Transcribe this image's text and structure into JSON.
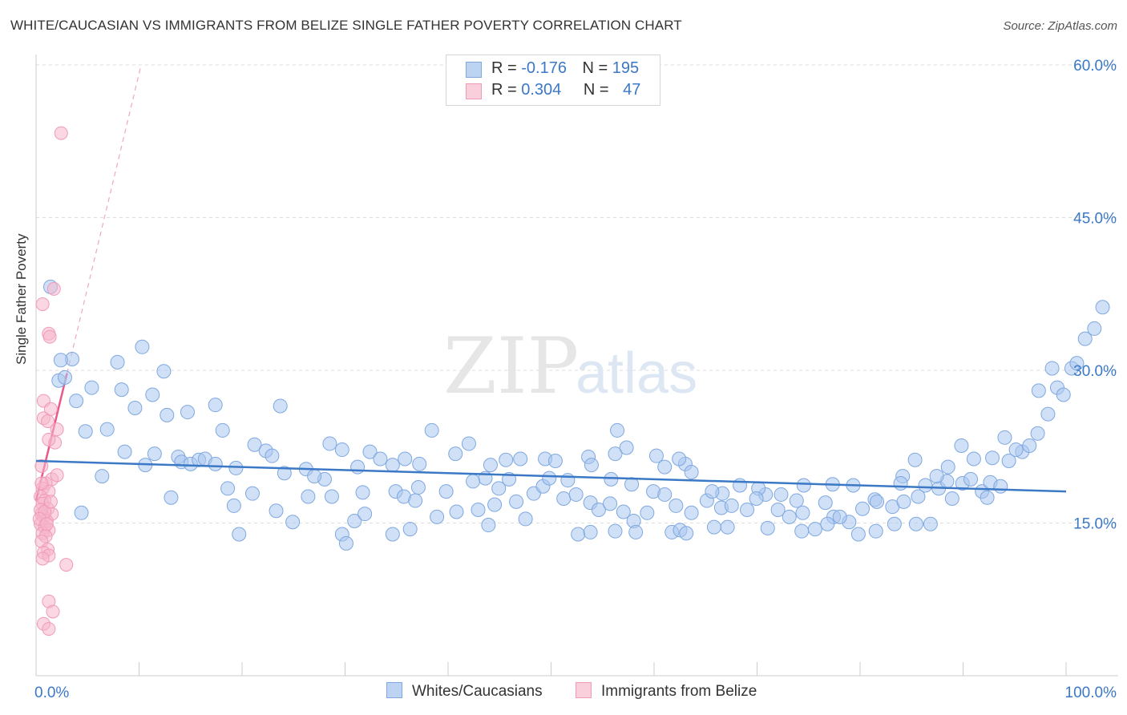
{
  "header": {
    "title": "WHITE/CAUCASIAN VS IMMIGRANTS FROM BELIZE SINGLE FATHER POVERTY CORRELATION CHART",
    "source": "Source: ZipAtlas.com"
  },
  "watermark": {
    "part1": "ZIP",
    "part2": "atlas"
  },
  "legend": {
    "rows": [
      {
        "r_label": "R = ",
        "r_value": "-0.176",
        "n_label": "N = ",
        "n_value": "195",
        "color": "#7fa8e0"
      },
      {
        "r_label": "R = ",
        "r_value": "0.304",
        "n_label": "N = ",
        "n_value": "47",
        "color": "#f09ab8"
      }
    ]
  },
  "bottom_legend": {
    "series1": "Whites/Caucasians",
    "series2": "Immigrants from Belize"
  },
  "chart_data": {
    "type": "scatter",
    "xlabel": "",
    "ylabel": "Single Father Poverty",
    "xlim": [
      0,
      100
    ],
    "ylim": [
      0,
      63
    ],
    "x_tick_labels": {
      "min": "0.0%",
      "max": "100.0%"
    },
    "y_ticks": [
      {
        "value": 15,
        "label": "15.0%"
      },
      {
        "value": 30,
        "label": "30.0%"
      },
      {
        "value": 45,
        "label": "45.0%"
      },
      {
        "value": 60,
        "label": "60.0%"
      }
    ],
    "gridlines": true,
    "colors": {
      "blue": "#3b78c6",
      "blue_fill": "#a9c6ee",
      "pink": "#e8588c",
      "pink_fill": "#f5b6cb"
    },
    "series": [
      {
        "name": "Whites/Caucasians",
        "trend": {
          "x": [
            0,
            100
          ],
          "y": [
            21.1,
            18.1
          ]
        },
        "points": [
          [
            1.4,
            38.2
          ],
          [
            3.5,
            31.1
          ],
          [
            2.4,
            31.0
          ],
          [
            2.2,
            29.0
          ],
          [
            2.8,
            29.3
          ],
          [
            3.9,
            27.0
          ],
          [
            5.4,
            28.3
          ],
          [
            7.9,
            30.8
          ],
          [
            10.3,
            32.3
          ],
          [
            11.3,
            27.6
          ],
          [
            8.3,
            28.1
          ],
          [
            12.4,
            29.9
          ],
          [
            4.8,
            24.0
          ],
          [
            6.9,
            24.2
          ],
          [
            9.6,
            26.3
          ],
          [
            12.7,
            25.6
          ],
          [
            14.7,
            25.9
          ],
          [
            17.4,
            26.6
          ],
          [
            18.1,
            24.1
          ],
          [
            23.7,
            26.5
          ],
          [
            8.6,
            22.0
          ],
          [
            11.5,
            21.8
          ],
          [
            13.8,
            21.5
          ],
          [
            14.1,
            21.0
          ],
          [
            15.0,
            20.8
          ],
          [
            10.6,
            20.7
          ],
          [
            15.8,
            21.2
          ],
          [
            16.4,
            21.3
          ],
          [
            17.4,
            20.8
          ],
          [
            19.4,
            20.4
          ],
          [
            21.2,
            22.7
          ],
          [
            22.3,
            22.1
          ],
          [
            22.9,
            21.6
          ],
          [
            24.1,
            19.9
          ],
          [
            26.2,
            20.3
          ],
          [
            28.5,
            22.8
          ],
          [
            29.7,
            22.2
          ],
          [
            28.0,
            19.3
          ],
          [
            31.2,
            20.5
          ],
          [
            32.4,
            22.0
          ],
          [
            33.4,
            21.3
          ],
          [
            34.6,
            20.7
          ],
          [
            35.8,
            21.3
          ],
          [
            37.2,
            20.8
          ],
          [
            38.4,
            24.1
          ],
          [
            40.7,
            21.8
          ],
          [
            42.0,
            22.8
          ],
          [
            44.1,
            20.7
          ],
          [
            45.6,
            21.2
          ],
          [
            47.0,
            21.3
          ],
          [
            49.4,
            21.3
          ],
          [
            50.4,
            21.1
          ],
          [
            53.6,
            21.5
          ],
          [
            56.2,
            21.8
          ],
          [
            57.3,
            22.4
          ],
          [
            60.2,
            21.6
          ],
          [
            63.0,
            20.8
          ],
          [
            61.0,
            20.5
          ],
          [
            62.4,
            21.3
          ],
          [
            56.4,
            24.1
          ],
          [
            4.4,
            16.0
          ],
          [
            6.4,
            19.6
          ],
          [
            13.1,
            17.5
          ],
          [
            18.6,
            18.4
          ],
          [
            19.2,
            16.7
          ],
          [
            21.0,
            17.9
          ],
          [
            23.3,
            16.2
          ],
          [
            24.9,
            15.1
          ],
          [
            26.4,
            17.6
          ],
          [
            28.7,
            17.6
          ],
          [
            30.9,
            15.2
          ],
          [
            31.9,
            15.9
          ],
          [
            34.9,
            18.1
          ],
          [
            35.7,
            17.6
          ],
          [
            36.8,
            17.2
          ],
          [
            40.8,
            16.1
          ],
          [
            42.9,
            16.3
          ],
          [
            43.6,
            19.4
          ],
          [
            44.9,
            18.4
          ],
          [
            46.6,
            17.1
          ],
          [
            47.5,
            15.4
          ],
          [
            48.3,
            17.9
          ],
          [
            49.2,
            18.6
          ],
          [
            51.2,
            17.4
          ],
          [
            52.4,
            17.8
          ],
          [
            53.8,
            17.0
          ],
          [
            54.6,
            16.3
          ],
          [
            55.7,
            16.9
          ],
          [
            57.0,
            16.1
          ],
          [
            58.0,
            15.2
          ],
          [
            59.3,
            16.0
          ],
          [
            59.9,
            18.1
          ],
          [
            61.0,
            17.8
          ],
          [
            62.1,
            16.7
          ],
          [
            63.6,
            16.0
          ],
          [
            65.1,
            17.2
          ],
          [
            66.5,
            16.5
          ],
          [
            67.1,
            14.6
          ],
          [
            69.0,
            16.3
          ],
          [
            70.8,
            17.8
          ],
          [
            72.0,
            16.3
          ],
          [
            73.1,
            15.6
          ],
          [
            74.4,
            16.0
          ],
          [
            76.6,
            17.0
          ],
          [
            77.4,
            15.6
          ],
          [
            78.9,
            15.1
          ],
          [
            80.2,
            16.4
          ],
          [
            81.4,
            17.3
          ],
          [
            83.1,
            16.6
          ],
          [
            84.2,
            17.1
          ],
          [
            19.7,
            13.9
          ],
          [
            29.7,
            13.9
          ],
          [
            30.1,
            13.0
          ],
          [
            34.6,
            13.9
          ],
          [
            52.6,
            13.9
          ],
          [
            53.8,
            14.1
          ],
          [
            56.2,
            14.2
          ],
          [
            58.2,
            14.1
          ],
          [
            61.7,
            14.1
          ],
          [
            62.5,
            14.3
          ],
          [
            63.1,
            14.0
          ],
          [
            65.8,
            14.6
          ],
          [
            71.0,
            14.5
          ],
          [
            74.3,
            14.2
          ],
          [
            75.6,
            14.4
          ],
          [
            76.8,
            14.9
          ],
          [
            78.0,
            15.6
          ],
          [
            79.8,
            13.9
          ],
          [
            81.5,
            14.2
          ],
          [
            83.3,
            14.9
          ],
          [
            85.4,
            14.9
          ],
          [
            86.3,
            18.7
          ],
          [
            87.6,
            18.4
          ],
          [
            88.4,
            19.1
          ],
          [
            89.9,
            18.9
          ],
          [
            90.7,
            19.3
          ],
          [
            91.8,
            18.1
          ],
          [
            92.6,
            19.0
          ],
          [
            93.6,
            18.6
          ],
          [
            87.4,
            19.6
          ],
          [
            84.1,
            19.6
          ],
          [
            85.6,
            17.6
          ],
          [
            88.9,
            17.4
          ],
          [
            86.8,
            14.9
          ],
          [
            92.8,
            21.4
          ],
          [
            94.4,
            21.1
          ],
          [
            95.7,
            22.0
          ],
          [
            96.4,
            22.6
          ],
          [
            97.2,
            23.8
          ],
          [
            98.2,
            25.7
          ],
          [
            94.0,
            23.4
          ],
          [
            95.1,
            22.2
          ],
          [
            97.3,
            28.0
          ],
          [
            98.6,
            30.2
          ],
          [
            99.1,
            28.3
          ],
          [
            99.7,
            27.6
          ],
          [
            100.5,
            30.2
          ],
          [
            101.0,
            30.7
          ],
          [
            101.8,
            33.1
          ],
          [
            102.7,
            34.1
          ],
          [
            103.5,
            36.2
          ],
          [
            91.0,
            21.3
          ],
          [
            89.8,
            22.6
          ],
          [
            92.3,
            17.5
          ],
          [
            88.5,
            20.5
          ],
          [
            66.6,
            17.9
          ],
          [
            68.3,
            18.7
          ],
          [
            70.1,
            18.4
          ],
          [
            72.3,
            17.8
          ],
          [
            74.5,
            18.7
          ],
          [
            77.3,
            18.8
          ],
          [
            79.3,
            18.7
          ],
          [
            81.6,
            17.1
          ],
          [
            83.9,
            18.9
          ],
          [
            85.3,
            21.2
          ],
          [
            67.5,
            16.7
          ],
          [
            69.9,
            17.4
          ],
          [
            73.8,
            17.2
          ],
          [
            44.5,
            16.8
          ],
          [
            45.9,
            19.3
          ],
          [
            53.9,
            20.7
          ],
          [
            55.8,
            19.3
          ],
          [
            57.8,
            18.8
          ],
          [
            63.6,
            20.0
          ],
          [
            65.6,
            18.1
          ],
          [
            27.0,
            19.6
          ],
          [
            31.7,
            18.0
          ],
          [
            37.1,
            18.5
          ],
          [
            39.8,
            18.1
          ],
          [
            42.4,
            19.1
          ],
          [
            49.8,
            19.4
          ],
          [
            51.6,
            19.2
          ],
          [
            38.9,
            15.6
          ],
          [
            36.3,
            14.4
          ],
          [
            43.9,
            14.8
          ]
        ]
      },
      {
        "name": "Immigrants from Belize",
        "trend": {
          "x": [
            0,
            3.0
          ],
          "y": [
            17.2,
            29.7
          ],
          "dashed_extension": {
            "x": [
              3.0,
              10.2
            ],
            "y": [
              29.7,
              60.0
            ]
          }
        },
        "points": [
          [
            2.2,
            53.3
          ],
          [
            1.5,
            38.0
          ],
          [
            0.4,
            36.5
          ],
          [
            1.0,
            33.6
          ],
          [
            1.1,
            33.3
          ],
          [
            0.5,
            27.0
          ],
          [
            0.5,
            25.3
          ],
          [
            0.9,
            25.0
          ],
          [
            1.2,
            26.2
          ],
          [
            1.8,
            24.2
          ],
          [
            1.6,
            22.9
          ],
          [
            1.0,
            23.2
          ],
          [
            0.3,
            20.6
          ],
          [
            1.3,
            19.3
          ],
          [
            1.8,
            19.7
          ],
          [
            0.7,
            18.9
          ],
          [
            0.4,
            18.4
          ],
          [
            1.0,
            18.1
          ],
          [
            0.2,
            17.6
          ],
          [
            0.6,
            17.2
          ],
          [
            0.4,
            16.9
          ],
          [
            0.9,
            16.4
          ],
          [
            1.3,
            15.9
          ],
          [
            0.3,
            15.9
          ],
          [
            0.5,
            15.6
          ],
          [
            0.8,
            15.2
          ],
          [
            0.2,
            14.9
          ],
          [
            0.6,
            14.6
          ],
          [
            1.0,
            14.3
          ],
          [
            0.4,
            14.0
          ],
          [
            0.7,
            13.7
          ],
          [
            0.3,
            13.2
          ],
          [
            0.9,
            12.4
          ],
          [
            0.5,
            12.1
          ],
          [
            1.0,
            11.8
          ],
          [
            0.4,
            11.5
          ],
          [
            2.7,
            10.9
          ],
          [
            1.0,
            7.3
          ],
          [
            1.4,
            6.3
          ],
          [
            0.5,
            5.1
          ],
          [
            1.0,
            4.6
          ],
          [
            0.2,
            16.3
          ],
          [
            0.6,
            16.1
          ],
          [
            0.1,
            15.4
          ],
          [
            0.8,
            14.9
          ],
          [
            1.2,
            17.1
          ],
          [
            0.3,
            18.9
          ]
        ]
      }
    ]
  }
}
